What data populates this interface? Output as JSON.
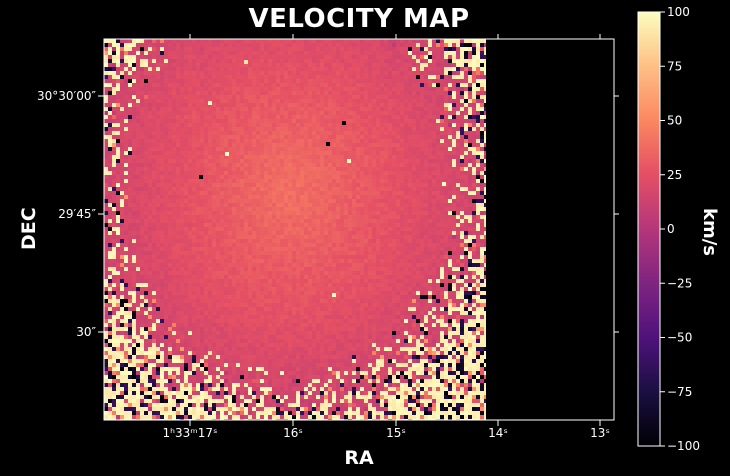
{
  "chart_data": {
    "type": "heatmap",
    "title": "VELOCITY MAP",
    "xlabel": "RA",
    "ylabel": "DEC",
    "colorbar": {
      "label": "km/s",
      "range": [
        -100,
        100
      ],
      "ticks": [
        "100",
        "75",
        "50",
        "25",
        "0",
        "−25",
        "−50",
        "−75",
        "−100"
      ],
      "tick_values": [
        100,
        75,
        50,
        25,
        0,
        -25,
        -50,
        -75,
        -100
      ],
      "colormap": "magma"
    },
    "x_ticks": [
      {
        "label": "1ʰ33ᵐ17ˢ"
      },
      {
        "label": "16ˢ"
      },
      {
        "label": "15ˢ"
      },
      {
        "label": "14ˢ"
      },
      {
        "label": "13ˢ"
      }
    ],
    "y_ticks": [
      {
        "label": "30°30′00″"
      },
      {
        "label": "29′45″"
      },
      {
        "label": "30″"
      }
    ],
    "grid": false,
    "colors": {
      "background": "#000000",
      "axes": "#ffffff",
      "map_core": "#e2686e",
      "map_edge_noise": "#fcf4b6"
    }
  }
}
